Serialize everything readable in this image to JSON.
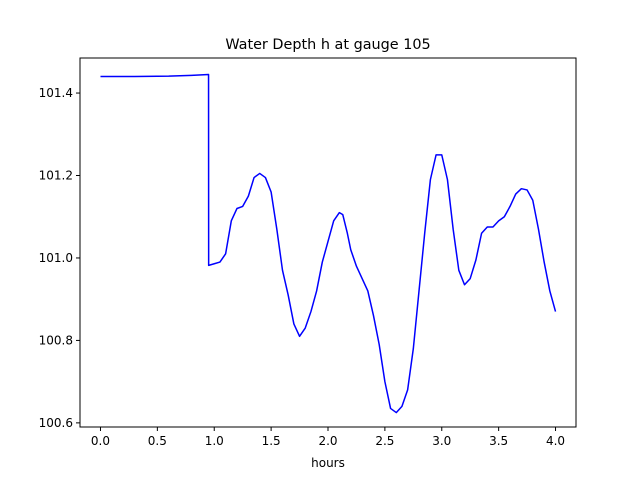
{
  "chart_data": {
    "type": "line",
    "title": "Water Depth h at gauge 105",
    "xlabel": "hours",
    "ylabel": "",
    "xlim": [
      -0.18,
      4.18
    ],
    "ylim": [
      100.59,
      101.485
    ],
    "xticks": [
      0.0,
      0.5,
      1.0,
      1.5,
      2.0,
      2.5,
      3.0,
      3.5,
      4.0
    ],
    "xtick_labels": [
      "0.0",
      "0.5",
      "1.0",
      "1.5",
      "2.0",
      "2.5",
      "3.0",
      "3.5",
      "4.0"
    ],
    "yticks": [
      100.6,
      100.8,
      101.0,
      101.2,
      101.4
    ],
    "ytick_labels": [
      "100.6",
      "100.8",
      "101.0",
      "101.2",
      "101.4"
    ],
    "grid": false,
    "series": [
      {
        "color": "#0000ff",
        "x": [
          0.0,
          0.3,
          0.6,
          0.8,
          0.95,
          0.951,
          1.0,
          1.05,
          1.1,
          1.15,
          1.2,
          1.25,
          1.3,
          1.35,
          1.4,
          1.45,
          1.5,
          1.55,
          1.6,
          1.65,
          1.7,
          1.75,
          1.8,
          1.85,
          1.9,
          1.95,
          2.0,
          2.05,
          2.1,
          2.13,
          2.17,
          2.2,
          2.25,
          2.3,
          2.35,
          2.4,
          2.45,
          2.5,
          2.55,
          2.6,
          2.65,
          2.7,
          2.75,
          2.8,
          2.85,
          2.9,
          2.95,
          3.0,
          3.05,
          3.1,
          3.15,
          3.2,
          3.25,
          3.3,
          3.35,
          3.4,
          3.45,
          3.5,
          3.55,
          3.6,
          3.65,
          3.7,
          3.75,
          3.8,
          3.85,
          3.9,
          3.95,
          4.0
        ],
        "y": [
          101.44,
          101.44,
          101.441,
          101.443,
          101.445,
          100.982,
          100.986,
          100.99,
          101.01,
          101.09,
          101.12,
          101.125,
          101.15,
          101.195,
          101.205,
          101.195,
          101.16,
          101.07,
          100.97,
          100.91,
          100.84,
          100.81,
          100.83,
          100.87,
          100.92,
          100.99,
          101.04,
          101.09,
          101.11,
          101.105,
          101.06,
          101.02,
          100.98,
          100.95,
          100.92,
          100.86,
          100.79,
          100.7,
          100.635,
          100.625,
          100.64,
          100.68,
          100.78,
          100.92,
          101.06,
          101.19,
          101.25,
          101.25,
          101.19,
          101.07,
          100.97,
          100.935,
          100.95,
          100.995,
          101.06,
          101.075,
          101.075,
          101.09,
          101.1,
          101.125,
          101.155,
          101.168,
          101.165,
          101.14,
          101.07,
          100.99,
          100.92,
          100.87
        ]
      }
    ]
  }
}
